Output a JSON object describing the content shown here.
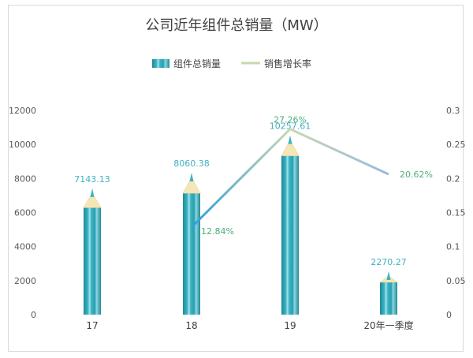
{
  "chart_data": {
    "type": "bar",
    "title": "公司近年组件总销量（MW）",
    "categories": [
      "17",
      "18",
      "19",
      "20年一季度"
    ],
    "series": [
      {
        "name": "组件总销量",
        "type": "bar",
        "axis": "left",
        "values": [
          7143.13,
          8060.38,
          10257.61,
          2270.27
        ],
        "labels": [
          "7143.13",
          "8060.38",
          "10257.61",
          "2270.27"
        ]
      },
      {
        "name": "销售增长率",
        "type": "line",
        "axis": "right",
        "values": [
          null,
          0.1284,
          0.2726,
          0.2062
        ],
        "labels": [
          "",
          "12.84%",
          "27.26%",
          "20.62%"
        ]
      }
    ],
    "y_left": {
      "min": 0,
      "max": 12000,
      "ticks": [
        "0",
        "2000",
        "4000",
        "6000",
        "8000",
        "10000",
        "12000"
      ]
    },
    "y_right": {
      "min": 0,
      "max": 0.3,
      "ticks": [
        "0",
        "0.05",
        "0.1",
        "0.15",
        "0.2",
        "0.25",
        "0.3"
      ]
    },
    "grid": false,
    "legend_position": "top",
    "colors": {
      "bar": "#3bb3c3",
      "bar_dark": "#1e8a99",
      "pencil_tip": "#f5e6b8",
      "line_start": "#2f9fd6",
      "line_end": "#bfe0a8"
    }
  }
}
